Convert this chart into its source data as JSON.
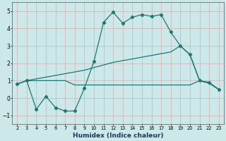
{
  "xlabel": "Humidex (Indice chaleur)",
  "x": [
    2,
    3,
    4,
    5,
    6,
    7,
    8,
    9,
    10,
    11,
    12,
    13,
    14,
    15,
    16,
    17,
    18,
    19,
    20,
    21,
    22,
    23
  ],
  "line1": [
    0.8,
    1.0,
    -0.65,
    0.1,
    -0.55,
    -0.75,
    -0.75,
    0.55,
    2.1,
    4.35,
    4.95,
    4.3,
    4.65,
    4.8,
    4.7,
    4.8,
    3.8,
    3.0,
    2.5,
    1.0,
    0.9,
    0.5
  ],
  "line2": [
    0.8,
    1.0,
    1.0,
    1.0,
    1.0,
    1.0,
    0.75,
    0.75,
    0.75,
    0.75,
    0.75,
    0.75,
    0.75,
    0.75,
    0.75,
    0.75,
    0.75,
    0.75,
    0.75,
    1.0,
    0.85,
    0.5
  ],
  "line3": [
    0.8,
    1.0,
    1.1,
    1.2,
    1.3,
    1.4,
    1.5,
    1.6,
    1.75,
    1.9,
    2.05,
    2.15,
    2.25,
    2.35,
    2.45,
    2.55,
    2.65,
    3.0,
    2.5,
    1.0,
    0.85,
    0.5
  ],
  "line_color": "#1d7874",
  "bg_color": "#cce8e8",
  "grid_color": "#b0d8d8",
  "ylim": [
    -1.5,
    5.5
  ],
  "yticks": [
    -1,
    0,
    1,
    2,
    3,
    4,
    5
  ],
  "xlim": [
    1.5,
    23.5
  ]
}
